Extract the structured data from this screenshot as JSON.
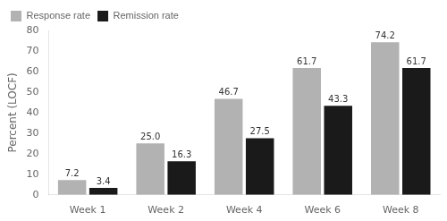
{
  "chart_data": {
    "type": "bar",
    "categories": [
      "Week 1",
      "Week 2",
      "Week 4",
      "Week 6",
      "Week 8"
    ],
    "series": [
      {
        "name": "Response rate",
        "color": "#b2b2b2",
        "values": [
          7.2,
          25.0,
          46.7,
          61.7,
          74.2
        ],
        "value_labels": [
          "7.2",
          "25.0",
          "46.7",
          "61.7",
          "74.2"
        ]
      },
      {
        "name": "Remission rate",
        "color": "#1a1a1a",
        "values": [
          3.4,
          16.3,
          27.5,
          43.3,
          61.7
        ]
      }
    ],
    "ylabel": "Percent (LOCF)",
    "ylim": [
      0,
      80
    ],
    "yticks": [
      0,
      10,
      20,
      30,
      40,
      50,
      60,
      70,
      80
    ],
    "data_labels": true,
    "legend": "upper left",
    "grid": false
  }
}
